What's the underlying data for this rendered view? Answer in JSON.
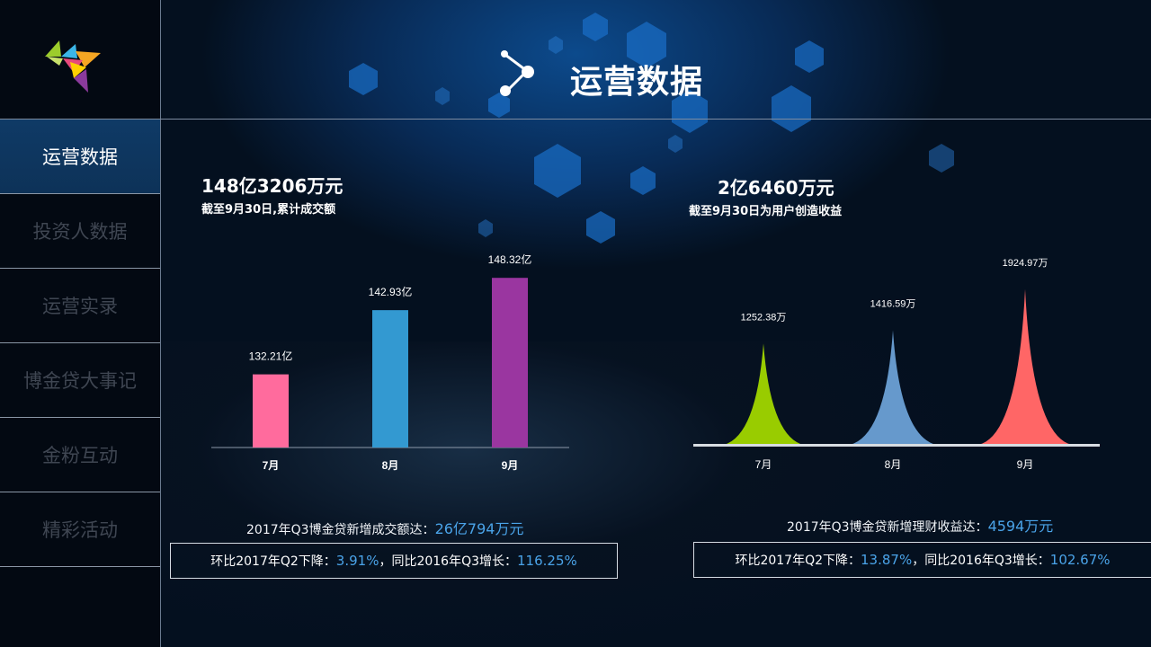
{
  "header": {
    "title": "运营数据"
  },
  "sidebar": {
    "items": [
      {
        "label": "运营数据",
        "active": true
      },
      {
        "label": "投资人数据",
        "active": false
      },
      {
        "label": "运营实录",
        "active": false
      },
      {
        "label": "博金贷大事记",
        "active": false
      },
      {
        "label": "金粉互动",
        "active": false
      },
      {
        "label": "精彩活动",
        "active": false
      }
    ]
  },
  "left_panel": {
    "big_value": "148亿3206万元",
    "subtitle": "截至9月30日,累计成交额",
    "summary_prefix": "2017年Q3博金贷新增成交额达：",
    "summary_value": "26亿794万元",
    "box_prefix_1": "环比2017年Q2下降：",
    "box_value_1": "3.91%",
    "box_prefix_2": "，同比2016年Q3增长：",
    "box_value_2": "116.25%"
  },
  "right_panel": {
    "big_value": "2亿6460万元",
    "subtitle": "截至9月30日为用户创造收益",
    "summary_prefix": "2017年Q3博金贷新增理财收益达：",
    "summary_value": "4594万元",
    "box_prefix_1": "环比2017年Q2下降：",
    "box_value_1": "13.87%",
    "box_prefix_2": "，同比2016年Q3增长：",
    "box_value_2": "102.67%"
  },
  "chart_data": [
    {
      "type": "bar",
      "categories": [
        "7月",
        "8月",
        "9月"
      ],
      "values": [
        132.21,
        142.93,
        148.32
      ],
      "data_labels": [
        "132.21亿",
        "142.93亿",
        "148.32亿"
      ],
      "colors": [
        "#ff6b9d",
        "#3399d1",
        "#9a36a0"
      ],
      "ylim": [
        120,
        150
      ],
      "grid": false
    },
    {
      "type": "area",
      "categories": [
        "7月",
        "8月",
        "9月"
      ],
      "values": [
        1252.38,
        1416.59,
        1924.97
      ],
      "data_labels": [
        "1252.38万",
        "1416.59万",
        "1924.97万"
      ],
      "colors": [
        "#99cc00",
        "#6699cc",
        "#ff6666"
      ],
      "ylim": [
        0,
        2000
      ],
      "grid": false
    }
  ]
}
